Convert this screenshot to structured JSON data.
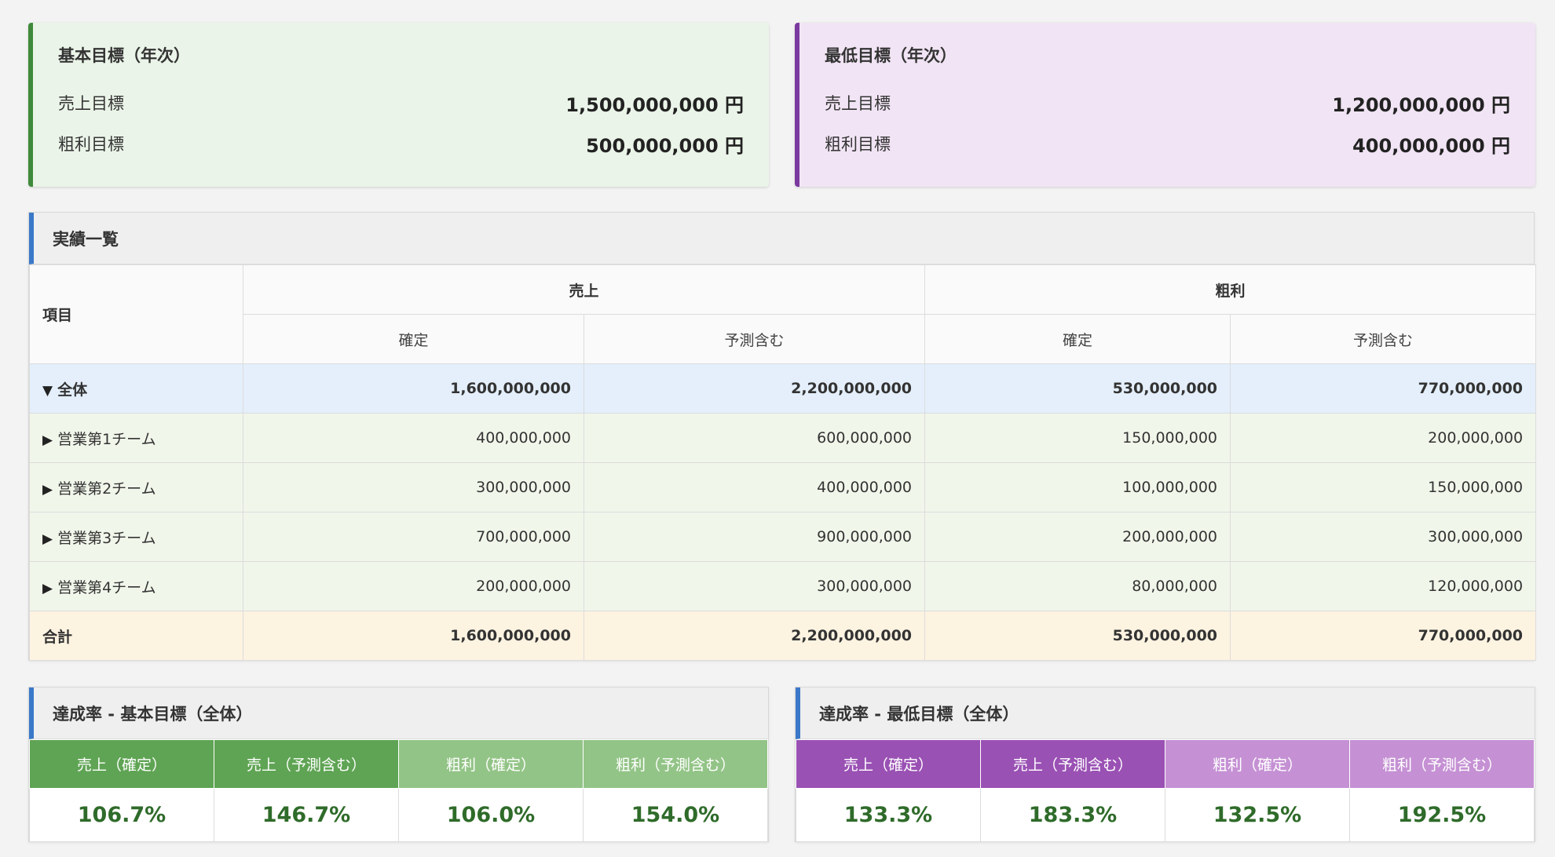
{
  "basic_target": {
    "title": "基本目標（年次）",
    "sales_label": "売上目標",
    "sales_value": "1,500,000,000 円",
    "profit_label": "粗利目標",
    "profit_value": "500,000,000 円"
  },
  "minimum_target": {
    "title": "最低目標（年次）",
    "sales_label": "売上目標",
    "sales_value": "1,200,000,000 円",
    "profit_label": "粗利目標",
    "profit_value": "400,000,000 円"
  },
  "results": {
    "title": "実績一覧",
    "item_header": "項目",
    "sales_header": "売上",
    "profit_header": "粗利",
    "confirmed_header": "確定",
    "forecast_header": "予測含む",
    "rows": [
      {
        "label": "全体",
        "toggle": "▼",
        "sales_confirmed": "1,600,000,000",
        "sales_forecast": "2,200,000,000",
        "profit_confirmed": "530,000,000",
        "profit_forecast": "770,000,000"
      },
      {
        "label": "営業第1チーム",
        "toggle": "▶",
        "sales_confirmed": "400,000,000",
        "sales_forecast": "600,000,000",
        "profit_confirmed": "150,000,000",
        "profit_forecast": "200,000,000"
      },
      {
        "label": "営業第2チーム",
        "toggle": "▶",
        "sales_confirmed": "300,000,000",
        "sales_forecast": "400,000,000",
        "profit_confirmed": "100,000,000",
        "profit_forecast": "150,000,000"
      },
      {
        "label": "営業第3チーム",
        "toggle": "▶",
        "sales_confirmed": "700,000,000",
        "sales_forecast": "900,000,000",
        "profit_confirmed": "200,000,000",
        "profit_forecast": "300,000,000"
      },
      {
        "label": "営業第4チーム",
        "toggle": "▶",
        "sales_confirmed": "200,000,000",
        "sales_forecast": "300,000,000",
        "profit_confirmed": "80,000,000",
        "profit_forecast": "120,000,000"
      }
    ],
    "total": {
      "label": "合計",
      "sales_confirmed": "1,600,000,000",
      "sales_forecast": "2,200,000,000",
      "profit_confirmed": "530,000,000",
      "profit_forecast": "770,000,000"
    }
  },
  "rate_basic": {
    "title": "達成率 - 基本目標（全体）",
    "headers": [
      "売上（確定）",
      "売上（予測含む）",
      "粗利（確定）",
      "粗利（予測含む）"
    ],
    "values": [
      "106.7%",
      "146.7%",
      "106.0%",
      "154.0%"
    ]
  },
  "rate_minimum": {
    "title": "達成率 - 最低目標（全体）",
    "headers": [
      "売上（確定）",
      "売上（予測含む）",
      "粗利（確定）",
      "粗利（予測含む）"
    ],
    "values": [
      "133.3%",
      "183.3%",
      "132.5%",
      "192.5%"
    ]
  },
  "colors": {
    "basic_accent": "#3f8a3a",
    "minimum_accent": "#7b3aa0",
    "panel_accent": "#3a78c9",
    "rate_value": "#2f6b2a"
  }
}
